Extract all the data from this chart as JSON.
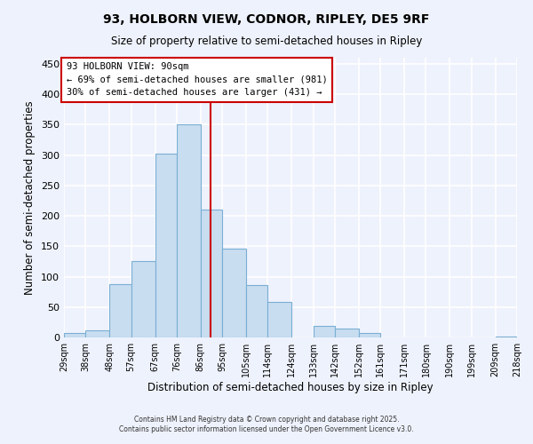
{
  "title": "93, HOLBORN VIEW, CODNOR, RIPLEY, DE5 9RF",
  "subtitle": "Size of property relative to semi-detached houses in Ripley",
  "xlabel": "Distribution of semi-detached houses by size in Ripley",
  "ylabel": "Number of semi-detached properties",
  "bin_edges": [
    29,
    38,
    48,
    57,
    67,
    76,
    86,
    95,
    105,
    114,
    124,
    133,
    142,
    152,
    161,
    171,
    180,
    190,
    199,
    209,
    218
  ],
  "bin_labels": [
    "29sqm",
    "38sqm",
    "48sqm",
    "57sqm",
    "67sqm",
    "76sqm",
    "86sqm",
    "95sqm",
    "105sqm",
    "114sqm",
    "124sqm",
    "133sqm",
    "142sqm",
    "152sqm",
    "161sqm",
    "171sqm",
    "180sqm",
    "190sqm",
    "199sqm",
    "209sqm",
    "218sqm"
  ],
  "counts": [
    7,
    12,
    88,
    126,
    303,
    350,
    210,
    146,
    86,
    58,
    0,
    19,
    15,
    8,
    0,
    0,
    0,
    0,
    0,
    2
  ],
  "bar_color": "#c8ddf0",
  "bar_edge_color": "#7aafd4",
  "vline_x": 90,
  "vline_color": "#cc0000",
  "annotation_title": "93 HOLBORN VIEW: 90sqm",
  "annotation_line1": "← 69% of semi-detached houses are smaller (981)",
  "annotation_line2": "30% of semi-detached houses are larger (431) →",
  "ylim": [
    0,
    460
  ],
  "background_color": "#eef2fc",
  "grid_color": "#ffffff",
  "footer1": "Contains HM Land Registry data © Crown copyright and database right 2025.",
  "footer2": "Contains public sector information licensed under the Open Government Licence v3.0."
}
